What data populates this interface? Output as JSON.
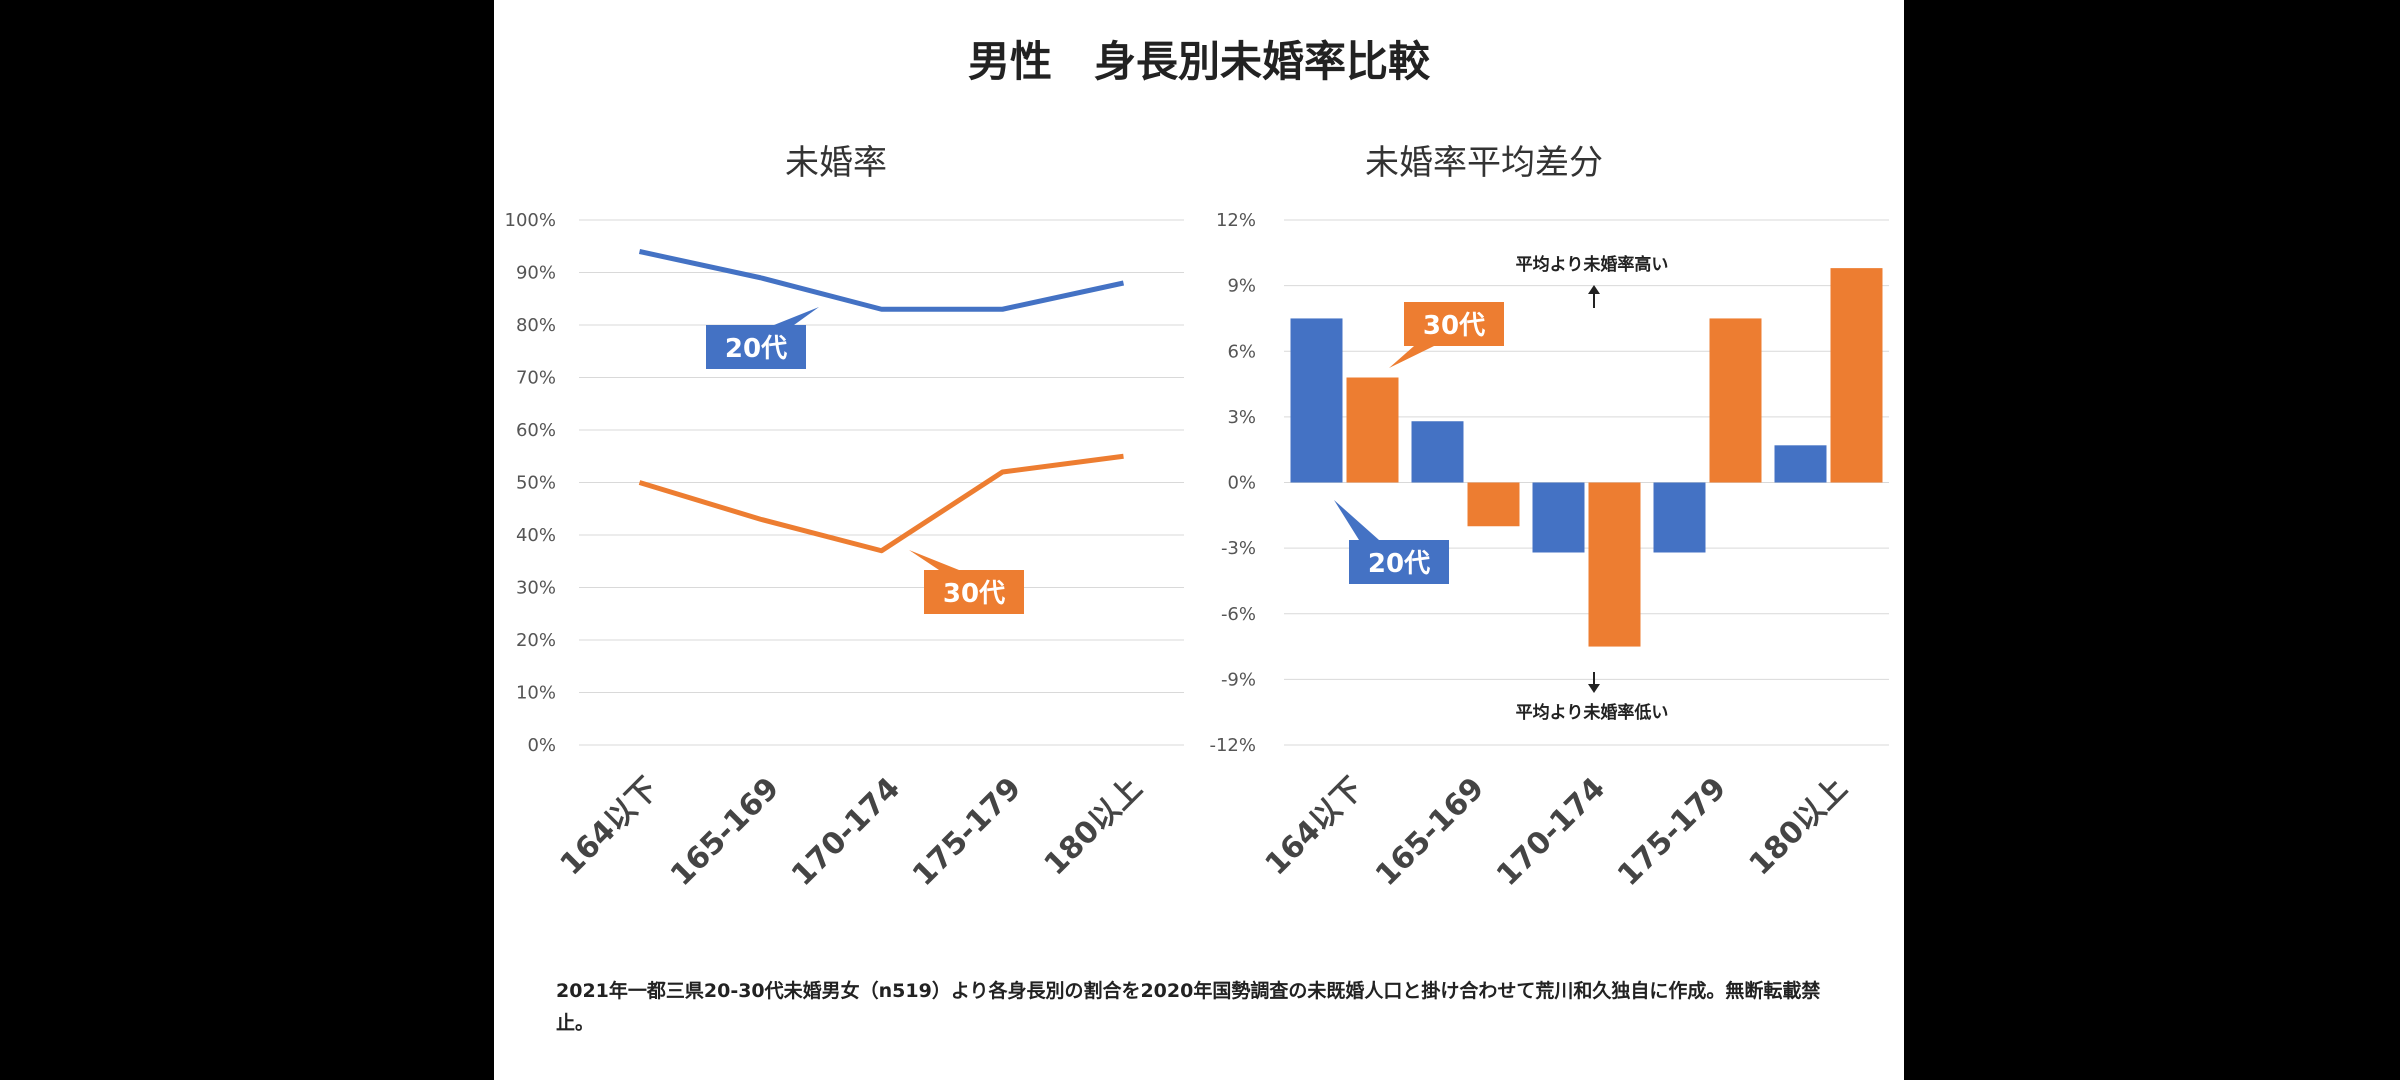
{
  "title": "男性　身長別未婚率比較",
  "note": "2021年一都三県20-30代未婚男女（n519）より各身長別の割合を2020年国勢調査の未既婚人口と掛け合わせて荒川和久独自に作成。無断転載禁止。",
  "colors": {
    "blue": "#4472C4",
    "orange": "#ED7D31",
    "grid": "#d9d9d9"
  },
  "chart_data": [
    {
      "type": "line",
      "title": "未婚率",
      "categories": [
        "164以下",
        "165-169",
        "170-174",
        "175-179",
        "180以上"
      ],
      "yticks": [
        "100%",
        "90%",
        "80%",
        "70%",
        "60%",
        "50%",
        "40%",
        "30%",
        "20%",
        "10%",
        "0%"
      ],
      "ylim": [
        0,
        100
      ],
      "series": [
        {
          "name": "20代",
          "values": [
            94,
            89,
            83,
            83,
            88
          ]
        },
        {
          "name": "30代",
          "values": [
            50,
            43,
            37,
            52,
            55
          ]
        }
      ]
    },
    {
      "type": "bar",
      "title": "未婚率平均差分",
      "categories": [
        "164以下",
        "165-169",
        "170-174",
        "175-179",
        "180以上"
      ],
      "yticks": [
        "12%",
        "9%",
        "6%",
        "3%",
        "0%",
        "-3%",
        "-6%",
        "-9%",
        "-12%"
      ],
      "ylim": [
        -12,
        12
      ],
      "series": [
        {
          "name": "20代",
          "values": [
            7.5,
            2.8,
            -3.2,
            -3.2,
            1.7
          ]
        },
        {
          "name": "30代",
          "values": [
            4.8,
            -2.0,
            -7.5,
            7.5,
            9.8
          ]
        }
      ],
      "annotations": {
        "high": "平均より未婚率高い",
        "low": "平均より未婚率低い"
      }
    }
  ]
}
